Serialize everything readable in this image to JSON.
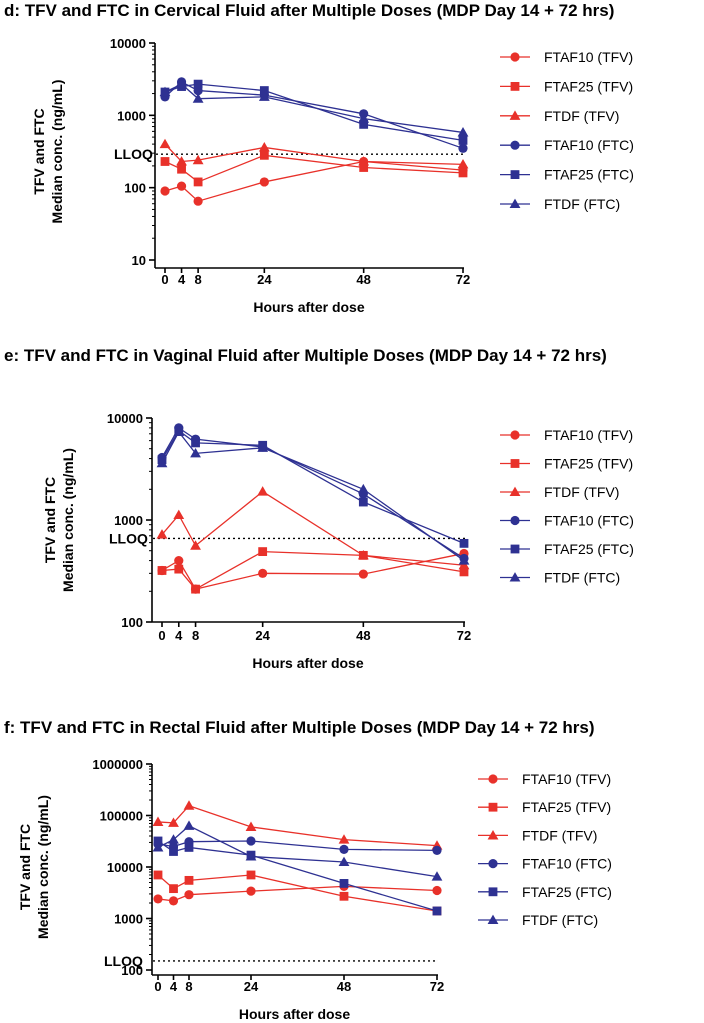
{
  "colors": {
    "red": "#e8312a",
    "blue": "#2e3192",
    "axis": "#000000"
  },
  "chart_data": [
    {
      "type": "line",
      "title": "d:  TFV and FTC in Cervical Fluid after Multiple Doses (MDP Day 14 + 72 hrs)",
      "ylabel_line1": "TFV and FTC",
      "ylabel_line2": "Median conc. (ng/mL)",
      "xlabel": "Hours after dose",
      "yscale": "log",
      "ylim": [
        10,
        10000
      ],
      "yticks": [
        10,
        100,
        1000,
        10000
      ],
      "ytick_labels": [
        "10",
        "100",
        "1000",
        "10000"
      ],
      "xlim": [
        0,
        72
      ],
      "xticks": [
        0,
        4,
        8,
        24,
        48,
        72
      ],
      "xtick_labels": [
        "0",
        "4",
        "8",
        "24",
        "48",
        "72"
      ],
      "lloq": {
        "label": "LLOQ",
        "value": 290
      },
      "x": [
        0,
        4,
        8,
        24,
        48,
        72
      ],
      "series": [
        {
          "name": "FTAF10 (TFV)",
          "color": "red",
          "marker": "circle",
          "values": [
            90,
            105,
            65,
            120,
            230,
            175
          ]
        },
        {
          "name": "FTAF25 (TFV)",
          "color": "red",
          "marker": "square",
          "values": [
            230,
            180,
            120,
            280,
            190,
            160
          ]
        },
        {
          "name": "FTDF (TFV)",
          "color": "red",
          "marker": "triangle",
          "values": [
            400,
            230,
            240,
            360,
            230,
            210
          ]
        },
        {
          "name": "FTAF10 (FTC)",
          "color": "blue",
          "marker": "circle",
          "values": [
            1800,
            2900,
            2200,
            1900,
            1050,
            350
          ]
        },
        {
          "name": "FTAF25 (FTC)",
          "color": "blue",
          "marker": "square",
          "values": [
            2100,
            2500,
            2700,
            2200,
            750,
            450
          ]
        },
        {
          "name": "FTDF (FTC)",
          "color": "blue",
          "marker": "triangle",
          "values": [
            2100,
            2700,
            1700,
            1800,
            900,
            580
          ]
        }
      ]
    },
    {
      "type": "line",
      "title": "e:  TFV and FTC in Vaginal Fluid after Multiple Doses (MDP Day 14 + 72 hrs)",
      "ylabel_line1": "TFV and FTC",
      "ylabel_line2": "Median conc. (ng/mL)",
      "xlabel": "Hours after dose",
      "yscale": "log",
      "ylim": [
        100,
        10000
      ],
      "yticks": [
        100,
        1000,
        10000
      ],
      "ytick_labels": [
        "100",
        "1000",
        "10000"
      ],
      "xlim": [
        0,
        72
      ],
      "xticks": [
        0,
        4,
        8,
        24,
        48,
        72
      ],
      "xtick_labels": [
        "0",
        "4",
        "8",
        "24",
        "48",
        "72"
      ],
      "lloq": {
        "label": "LLOQ",
        "value": 660
      },
      "x": [
        0,
        4,
        8,
        24,
        48,
        72
      ],
      "series": [
        {
          "name": "FTAF10 (TFV)",
          "color": "red",
          "marker": "circle",
          "values": [
            320,
            400,
            210,
            300,
            295,
            470
          ]
        },
        {
          "name": "FTAF25 (TFV)",
          "color": "red",
          "marker": "square",
          "values": [
            320,
            330,
            210,
            490,
            450,
            310
          ]
        },
        {
          "name": "FTDF (TFV)",
          "color": "red",
          "marker": "triangle",
          "values": [
            720,
            1120,
            560,
            1900,
            450,
            360
          ]
        },
        {
          "name": "FTAF10 (FTC)",
          "color": "blue",
          "marker": "circle",
          "values": [
            4100,
            8000,
            6200,
            5200,
            1800,
            420
          ]
        },
        {
          "name": "FTAF25 (FTC)",
          "color": "blue",
          "marker": "square",
          "values": [
            3900,
            7500,
            5700,
            5400,
            1500,
            590
          ]
        },
        {
          "name": "FTDF (FTC)",
          "color": "blue",
          "marker": "triangle",
          "values": [
            3600,
            7300,
            4500,
            5100,
            2000,
            400
          ]
        }
      ]
    },
    {
      "type": "line",
      "title": "f:  TFV and FTC in Rectal Fluid after Multiple Doses (MDP Day 14 + 72 hrs)",
      "ylabel_line1": "TFV and FTC",
      "ylabel_line2": "Median conc. (ng/mL)",
      "xlabel": "Hours after dose",
      "yscale": "log",
      "ylim": [
        100,
        1000000
      ],
      "yticks": [
        100,
        1000,
        10000,
        100000,
        1000000
      ],
      "ytick_labels": [
        "100",
        "1000",
        "10000",
        "100000",
        "1000000"
      ],
      "xlim": [
        0,
        72
      ],
      "xticks": [
        0,
        4,
        8,
        24,
        48,
        72
      ],
      "xtick_labels": [
        "0",
        "4",
        "8",
        "24",
        "48",
        "72"
      ],
      "lloq": {
        "label": "LLOQ",
        "value": 150
      },
      "x": [
        0,
        4,
        8,
        24,
        48,
        72
      ],
      "series": [
        {
          "name": "FTAF10 (TFV)",
          "color": "red",
          "marker": "circle",
          "values": [
            2400,
            2200,
            2900,
            3400,
            4200,
            3500
          ]
        },
        {
          "name": "FTAF25 (TFV)",
          "color": "red",
          "marker": "square",
          "values": [
            7000,
            3800,
            5500,
            7000,
            2700,
            1400
          ]
        },
        {
          "name": "FTDF (TFV)",
          "color": "red",
          "marker": "triangle",
          "values": [
            75000,
            72000,
            155000,
            60000,
            34000,
            26000
          ]
        },
        {
          "name": "FTAF10 (FTC)",
          "color": "blue",
          "marker": "circle",
          "values": [
            28000,
            25000,
            31000,
            32000,
            22000,
            21000
          ]
        },
        {
          "name": "FTAF25 (FTC)",
          "color": "blue",
          "marker": "square",
          "values": [
            32000,
            20000,
            24000,
            17000,
            4800,
            1400
          ]
        },
        {
          "name": "FTDF (FTC)",
          "color": "blue",
          "marker": "triangle",
          "values": [
            24000,
            34000,
            63000,
            16000,
            12500,
            6500
          ]
        }
      ]
    }
  ]
}
